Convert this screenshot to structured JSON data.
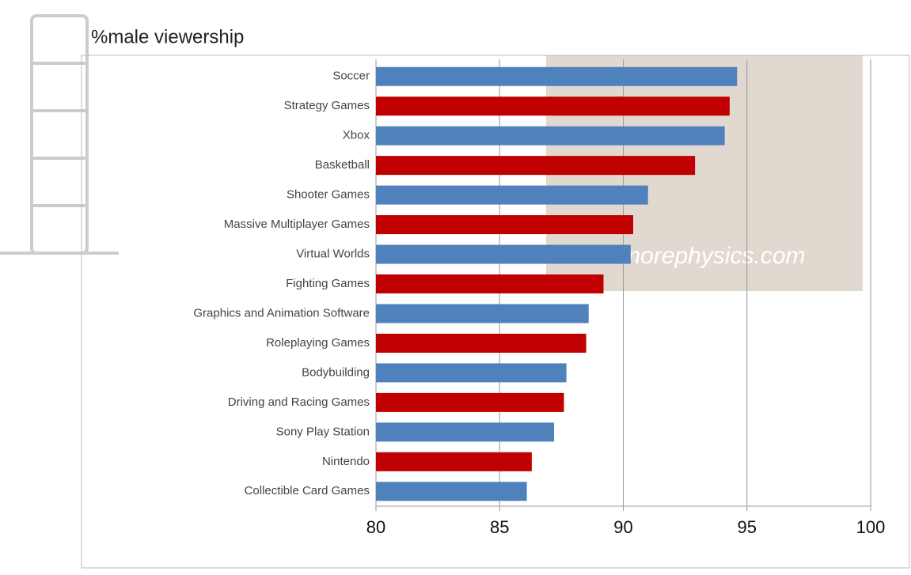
{
  "chart_data": {
    "type": "bar",
    "orientation": "horizontal",
    "title": "%male viewership",
    "categories": [
      "Soccer",
      "Strategy Games",
      "Xbox",
      "Basketball",
      "Shooter Games",
      "Massive Multiplayer Games",
      "Virtual Worlds",
      "Fighting Games",
      "Graphics and Animation Software",
      "Roleplaying Games",
      "Bodybuilding",
      "Driving and Racing Games",
      "Sony Play Station",
      "Nintendo",
      "Collectible Card Games"
    ],
    "values": [
      94.6,
      94.3,
      94.1,
      92.9,
      91.0,
      90.4,
      90.3,
      89.2,
      88.6,
      88.5,
      87.7,
      87.6,
      87.2,
      86.3,
      86.1
    ],
    "colors": [
      "#4f81bd",
      "#c00000",
      "#4f81bd",
      "#c00000",
      "#4f81bd",
      "#c00000",
      "#4f81bd",
      "#c00000",
      "#4f81bd",
      "#c00000",
      "#4f81bd",
      "#c00000",
      "#4f81bd",
      "#c00000",
      "#4f81bd"
    ],
    "xlim": [
      80,
      100
    ],
    "xticks": [
      80,
      85,
      90,
      95,
      100
    ],
    "grid": true,
    "watermark": "Stanmorephysics.com"
  }
}
